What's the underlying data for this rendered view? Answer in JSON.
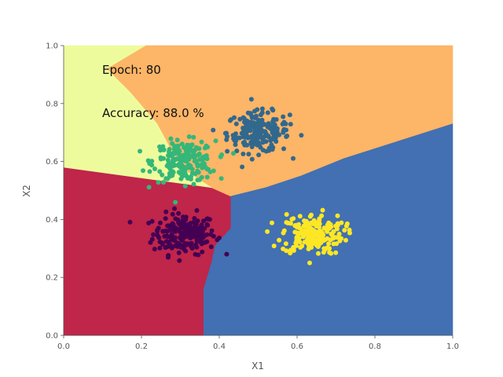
{
  "chart_data": {
    "type": "scatter",
    "title": "",
    "xlabel": "X1",
    "ylabel": "X2",
    "xlim": [
      0,
      1
    ],
    "ylim": [
      0,
      1
    ],
    "x_ticks": [
      "0.0",
      "0.2",
      "0.4",
      "0.6",
      "0.8",
      "1.0"
    ],
    "y_ticks": [
      "0.0",
      "0.2",
      "0.4",
      "0.6",
      "0.8",
      "1.0"
    ],
    "grid": false,
    "legend": "none",
    "annotations": [
      "Epoch: 80",
      "Accuracy: 88.0 %"
    ],
    "decision_regions": [
      {
        "class": 0,
        "color": "#c0254a",
        "polygon": [
          [
            0,
            0
          ],
          [
            0.36,
            0
          ],
          [
            0.36,
            0.16
          ],
          [
            0.38,
            0.25
          ],
          [
            0.39,
            0.31
          ],
          [
            0.43,
            0.37
          ],
          [
            0.43,
            0.48
          ],
          [
            0.38,
            0.51
          ],
          [
            0,
            0.58
          ]
        ]
      },
      {
        "class": 1,
        "color": "#fdb567",
        "polygon": [
          [
            0.21,
            1
          ],
          [
            1,
            1
          ],
          [
            1,
            0.73
          ],
          [
            0.86,
            0.67
          ],
          [
            0.72,
            0.61
          ],
          [
            0.61,
            0.55
          ],
          [
            0.52,
            0.51
          ],
          [
            0.43,
            0.48
          ],
          [
            0.38,
            0.51
          ],
          [
            0.3,
            0.58
          ],
          [
            0.24,
            0.73
          ],
          [
            0.17,
            0.84
          ],
          [
            0.11,
            0.92
          ]
        ]
      },
      {
        "class": 2,
        "color": "#eefb9d",
        "polygon": [
          [
            0,
            1
          ],
          [
            0.21,
            1
          ],
          [
            0.11,
            0.92
          ],
          [
            0.17,
            0.84
          ],
          [
            0.24,
            0.73
          ],
          [
            0.3,
            0.58
          ],
          [
            0.38,
            0.51
          ],
          [
            0,
            0.58
          ]
        ]
      },
      {
        "class": 3,
        "color": "#4270b2",
        "polygon": [
          [
            0.36,
            0
          ],
          [
            1,
            0
          ],
          [
            1,
            0.73
          ],
          [
            0.86,
            0.67
          ],
          [
            0.72,
            0.61
          ],
          [
            0.61,
            0.55
          ],
          [
            0.52,
            0.51
          ],
          [
            0.43,
            0.48
          ],
          [
            0.43,
            0.37
          ],
          [
            0.39,
            0.31
          ],
          [
            0.38,
            0.25
          ],
          [
            0.36,
            0.16
          ]
        ]
      }
    ],
    "series": [
      {
        "color": "#440154",
        "center": [
          0.31,
          0.35
        ],
        "spread": [
          0.04,
          0.035
        ],
        "count": 200
      },
      {
        "color": "#31688e",
        "center": [
          0.5,
          0.7
        ],
        "spread": [
          0.04,
          0.035
        ],
        "count": 200
      },
      {
        "color": "#35b779",
        "center": [
          0.31,
          0.6
        ],
        "spread": [
          0.04,
          0.035
        ],
        "count": 200
      },
      {
        "color": "#fde725",
        "center": [
          0.64,
          0.35
        ],
        "spread": [
          0.04,
          0.035
        ],
        "count": 200
      }
    ]
  }
}
